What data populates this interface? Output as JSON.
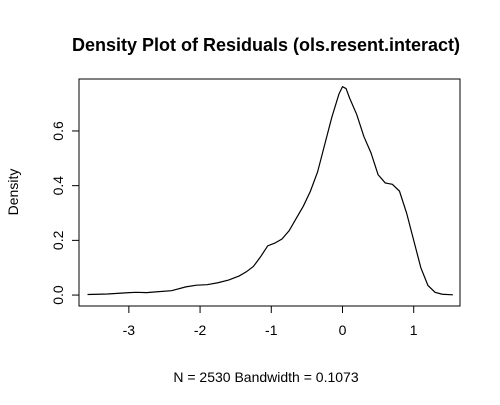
{
  "chart_data": {
    "type": "line",
    "title": "Density Plot of Residuals (ols.resent.interact)",
    "xlabel": "N = 2530   Bandwidth = 0.1073",
    "ylabel": "Density",
    "xlim": [
      -3.7,
      1.65
    ],
    "ylim": [
      -0.04,
      0.79
    ],
    "x_ticks": [
      -3,
      -2,
      -1,
      0,
      1
    ],
    "x_tick_labels": [
      "-3",
      "-2",
      "-1",
      "0",
      "1"
    ],
    "y_ticks": [
      0.0,
      0.2,
      0.4,
      0.6
    ],
    "y_tick_labels": [
      "0.0",
      "0.2",
      "0.4",
      "0.6"
    ],
    "grid": false,
    "legend": "none",
    "line_color": "#000000",
    "series": [
      {
        "x": [
          -3.58,
          -3.3,
          -3.05,
          -2.9,
          -2.75,
          -2.6,
          -2.4,
          -2.2,
          -2.05,
          -1.9,
          -1.75,
          -1.6,
          -1.45,
          -1.35,
          -1.25,
          -1.15,
          -1.05,
          -0.95,
          -0.85,
          -0.75,
          -0.65,
          -0.55,
          -0.45,
          -0.35,
          -0.25,
          -0.15,
          -0.05,
          0.0,
          0.05,
          0.1,
          0.2,
          0.3,
          0.4,
          0.5,
          0.6,
          0.7,
          0.8,
          0.9,
          1.0,
          1.1,
          1.2,
          1.3,
          1.4,
          1.55
        ],
        "y": [
          0.002,
          0.004,
          0.008,
          0.01,
          0.009,
          0.012,
          0.016,
          0.03,
          0.036,
          0.038,
          0.045,
          0.055,
          0.07,
          0.085,
          0.105,
          0.14,
          0.18,
          0.19,
          0.205,
          0.235,
          0.28,
          0.325,
          0.38,
          0.45,
          0.55,
          0.65,
          0.735,
          0.762,
          0.755,
          0.72,
          0.66,
          0.58,
          0.52,
          0.44,
          0.41,
          0.405,
          0.38,
          0.3,
          0.2,
          0.1,
          0.035,
          0.01,
          0.003,
          0.001
        ]
      }
    ]
  }
}
